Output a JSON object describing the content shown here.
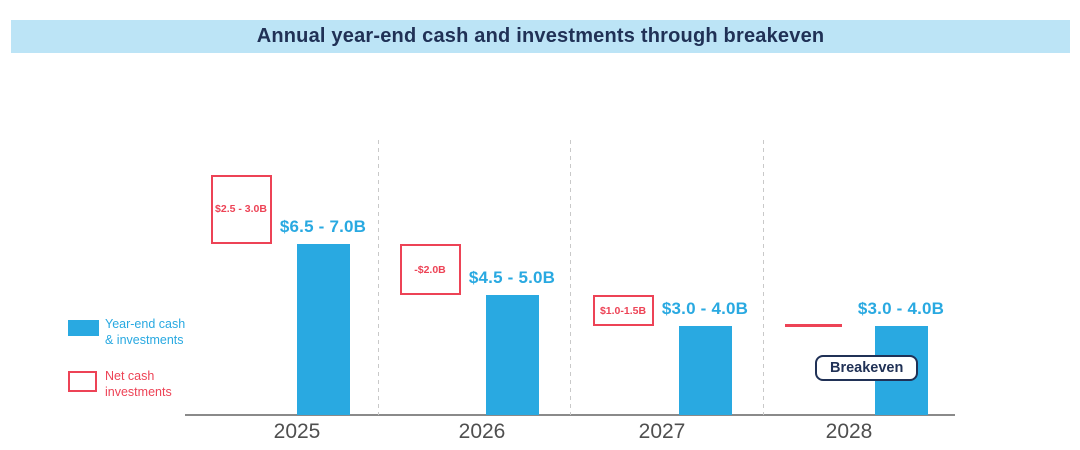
{
  "header": {
    "title": "Annual year-end cash and investments through breakeven"
  },
  "legend": {
    "year_end_cash": {
      "line1": "Year-end cash",
      "line2": "& investments"
    },
    "net_cash": {
      "line1": "Net cash",
      "line2": "investments"
    }
  },
  "breakeven_label": "Breakeven",
  "colors": {
    "bar_blue": "#29A9E1",
    "net_red": "#ED4356",
    "navy": "#203156",
    "header_bg": "#BCE4F6",
    "axis_gray": "#8A8A8A",
    "year_label_gray": "#4F4F4F",
    "dashed_line_gray": "#C9C9C9"
  },
  "chart_data": {
    "type": "bar",
    "title": "Annual year-end cash and investments through breakeven",
    "unit": "USD billions",
    "categories": [
      "2025",
      "2026",
      "2027",
      "2028"
    ],
    "series": [
      {
        "name": "Year-end cash & investments",
        "values": [
          6.75,
          4.75,
          3.5,
          3.5
        ],
        "labels": [
          "$6.5 - 7.0B",
          "$4.5 - 5.0B",
          "$3.0 - 4.0B",
          "$3.0 - 4.0B"
        ]
      },
      {
        "name": "Net cash investments",
        "values": [
          2.75,
          2.0,
          1.25,
          0
        ],
        "labels": [
          "$2.5 - 3.0B",
          "-$2.0B",
          "$1.0-1.5B",
          "Breakeven"
        ]
      }
    ],
    "ylim": [
      0,
      11
    ],
    "grid": "vertical dashed separators between year groups, no y-axis gridlines",
    "legend_position": "left",
    "annotations": [
      {
        "text": "Breakeven",
        "category": "2028",
        "meaning": "net cash investments reach zero (red line at bar top)"
      }
    ]
  }
}
